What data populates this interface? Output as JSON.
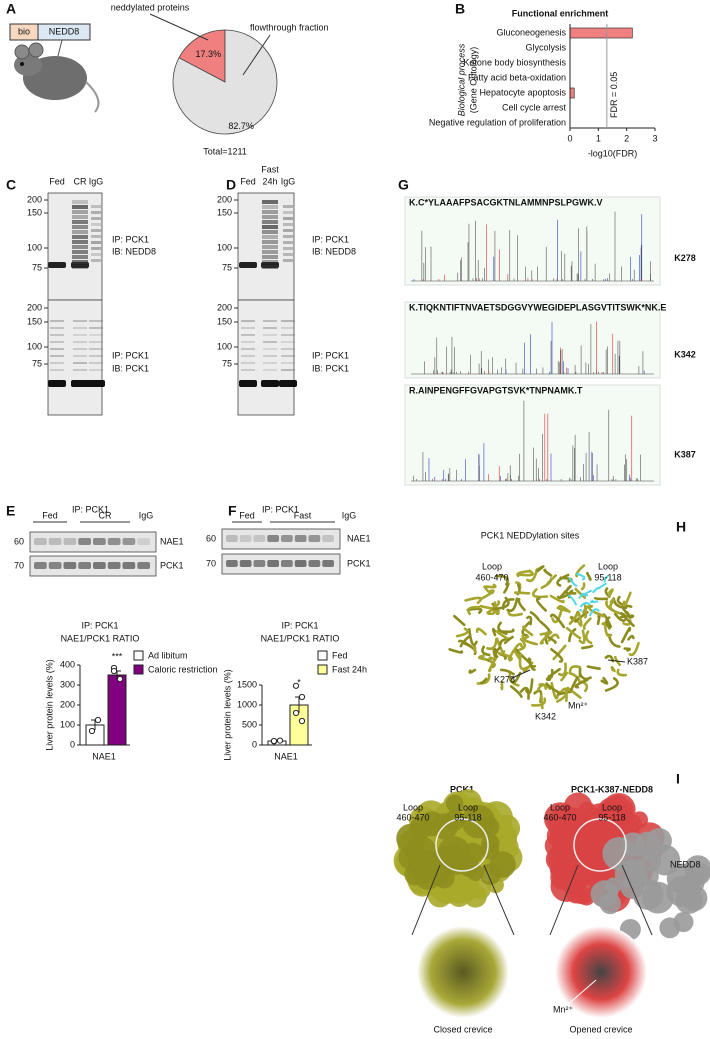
{
  "panel_letters": [
    "A",
    "B",
    "C",
    "D",
    "E",
    "F",
    "G",
    "H",
    "I"
  ],
  "construct": {
    "tag": "bio",
    "protein": "NEDD8"
  },
  "chart_data": [
    {
      "type": "pie",
      "categories": [
        "neddylated proteins",
        "flowthrough fraction"
      ],
      "values": [
        17.3,
        82.7
      ],
      "value_labels": [
        "17.3%",
        "82.7%"
      ],
      "colors": [
        "#f08080",
        "#e2e2e2"
      ],
      "annotation": "Total=1211"
    },
    {
      "type": "bar",
      "orientation": "horizontal",
      "title": "Functional enrichment",
      "y_label": [
        "Biological process",
        "(Gene Ontology)"
      ],
      "x_label": "-log10(FDR)",
      "categories": [
        "Gluconeogenesis",
        "Glycolysis",
        "Ketone body biosynthesis",
        "Fatty acid beta-oxidation",
        "Hepatocyte apoptosis",
        "Cell cycle arrest",
        "Negative regulation of proliferation"
      ],
      "values": [
        2.2,
        0,
        0,
        0,
        0.15,
        0,
        0
      ],
      "color": "#f08080",
      "xlim": [
        0,
        3
      ],
      "xticks": [
        0,
        1,
        2,
        3
      ],
      "threshold": {
        "value": 1.3,
        "label": "FDR = 0.05"
      }
    },
    {
      "type": "bar",
      "title": [
        "IP: PCK1",
        "NAE1/PCK1 RATIO"
      ],
      "y_label": "Liver protein levels (%)",
      "categories": [
        "NAE1"
      ],
      "series": [
        {
          "name": "Ad libitum",
          "color": "#ffffff",
          "values": [
            100
          ],
          "errors": [
            25
          ],
          "points": [
            70,
            125
          ]
        },
        {
          "name": "Caloric restriction",
          "color": "#800080",
          "values": [
            350
          ],
          "errors": [
            20
          ],
          "points": [
            385,
            330,
            370
          ]
        }
      ],
      "ylim": [
        0,
        400
      ],
      "yticks": [
        0,
        100,
        200,
        300,
        400
      ],
      "annotation": "***"
    },
    {
      "type": "bar",
      "title": [
        "IP: PCK1",
        "NAE1/PCK1 RATIO"
      ],
      "y_label": "Liver protein levels (%)",
      "categories": [
        "NAE1"
      ],
      "series": [
        {
          "name": "Fed",
          "color": "#ffffff",
          "values": [
            100
          ],
          "errors": [
            20
          ],
          "points": [
            90,
            110,
            100
          ]
        },
        {
          "name": "Fast 24h",
          "color": "#ffff99",
          "values": [
            1000
          ],
          "errors": [
            200
          ],
          "points": [
            1480,
            1200,
            800,
            600
          ]
        }
      ],
      "ylim": [
        0,
        1500
      ],
      "yticks": [
        0,
        500,
        1000,
        1500
      ],
      "annotation": "*"
    }
  ],
  "blots": {
    "C": {
      "lanes": [
        [
          "Fed"
        ],
        [
          "CR"
        ],
        [
          "IgG"
        ]
      ],
      "panels": [
        {
          "markers": [
            200,
            150,
            100,
            75
          ],
          "labels": [
            "IP: PCK1",
            "IB: NEDD8"
          ]
        },
        {
          "markers": [
            200,
            150,
            100,
            75
          ],
          "labels": [
            "IP: PCK1",
            "IB: PCK1"
          ]
        }
      ]
    },
    "D": {
      "lanes": [
        [
          "Fed"
        ],
        [
          "Fast",
          "24h"
        ],
        [
          "IgG"
        ]
      ],
      "panels": [
        {
          "markers": [
            200,
            150,
            100,
            75
          ],
          "labels": [
            "IP: PCK1",
            "IB: NEDD8"
          ]
        },
        {
          "markers": [
            200,
            150,
            100,
            75
          ],
          "labels": [
            "IP: PCK1",
            "IB: PCK1"
          ]
        }
      ]
    },
    "E": {
      "title": "IP: PCK1",
      "groups": [
        "Fed",
        "CR",
        "IgG"
      ],
      "rows": [
        {
          "marker": 60,
          "label": "NAE1"
        },
        {
          "marker": 70,
          "label": "PCK1"
        }
      ]
    },
    "F": {
      "title": "IP: PCK1",
      "groups": [
        "Fed",
        "Fast",
        "IgG"
      ],
      "rows": [
        {
          "marker": 60,
          "label": "NAE1"
        },
        {
          "marker": 70,
          "label": "PCK1"
        }
      ]
    }
  },
  "spectra": [
    {
      "peptide": "K.C*YLAAAFPSACGKTNLAMMNPSLPGWK.V",
      "site": "K278"
    },
    {
      "peptide": "K.TIQKNTIFTNVAETSDGGVYWEGIDEPLASGVTITSWK*NK.E",
      "site": "K342"
    },
    {
      "peptide": "R.AINPENGFFGVAPGTSVK*TNPNAMK.T",
      "site": "K387"
    }
  ],
  "structure_h": {
    "title": "PCK1 NEDDylation sites",
    "loop_a": [
      "Loop",
      "460-470"
    ],
    "loop_b": [
      "Loop",
      "95-118"
    ],
    "sites": [
      "K278",
      "K342",
      "K387"
    ],
    "metal": "Mn²⁺"
  },
  "structure_i": {
    "left_title": "PCK1",
    "right_title": "PCK1-K387-NEDD8",
    "loop_a": [
      "Loop",
      "460-470"
    ],
    "loop_b": [
      "Loop",
      "95-118"
    ],
    "nedd8": "NEDD8",
    "metal": "Mn²⁺",
    "captions": [
      "Closed crevice",
      "Opened crevice"
    ]
  }
}
